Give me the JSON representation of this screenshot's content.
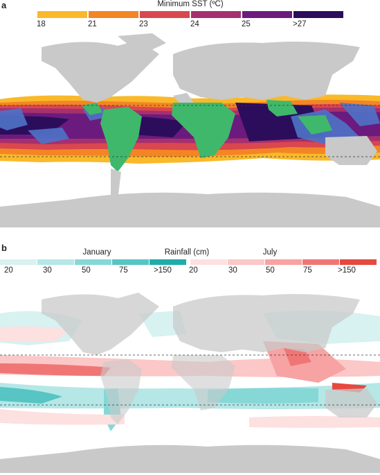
{
  "panel_a": {
    "letter": "a",
    "legend_title": "Minimum SST (ºC)",
    "legend_ticks": [
      "18",
      "21",
      "23",
      "24",
      "25",
      ">27"
    ],
    "legend_colors": [
      "#f9b92a",
      "#f48524",
      "#d9474f",
      "#a6306e",
      "#6b1b7d",
      "#2b0d5c"
    ]
  },
  "panel_b": {
    "letter": "b",
    "title_left": "January",
    "title_center": "Rainfall (cm)",
    "title_right": "July",
    "january_ticks": [
      "20",
      "30",
      "50",
      "75",
      ">150"
    ],
    "july_ticks": [
      "20",
      "30",
      "50",
      "75",
      ">150"
    ],
    "january_colors": [
      "#d8f1f1",
      "#b5e7e7",
      "#86d8d7",
      "#56c5c3",
      "#20aca9"
    ],
    "july_colors": [
      "#fde0e0",
      "#fbc7c7",
      "#f7a3a3",
      "#f07676",
      "#e5493f"
    ]
  },
  "map_colors": {
    "land": "#c9c9c9",
    "ocean": "#ffffff",
    "tropical_land": "#3fb86b",
    "coral_reef_areas": "#4f73c8"
  }
}
